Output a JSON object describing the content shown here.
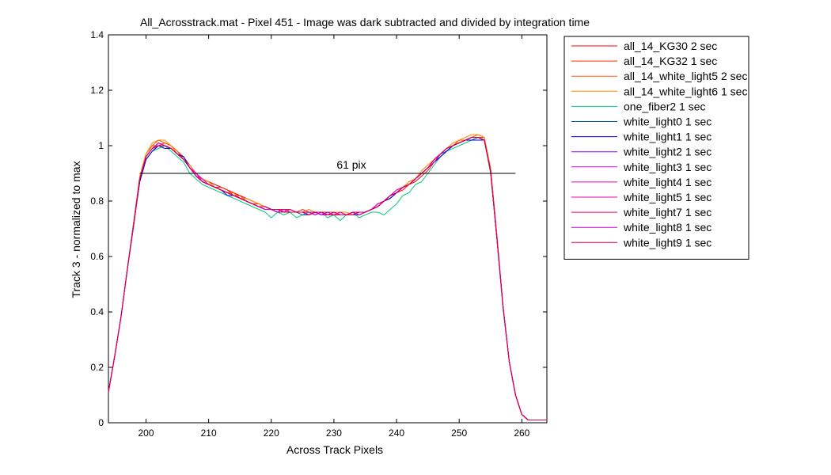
{
  "chart_data": {
    "type": "line",
    "title": "All_Acrosstrack.mat - Pixel 451 - Image was dark subtracted and divided by integration time",
    "xlabel": "Across Track Pixels",
    "ylabel": "Track 3 - normalized to max",
    "xlim": [
      194,
      264
    ],
    "ylim": [
      0,
      1.4
    ],
    "xticks": [
      200,
      210,
      220,
      230,
      240,
      250,
      260
    ],
    "yticks": [
      0,
      0.2,
      0.4,
      0.6,
      0.8,
      1,
      1.2,
      1.4
    ],
    "xtick_labels": [
      "200",
      "210",
      "220",
      "230",
      "240",
      "250",
      "260"
    ],
    "ytick_labels": [
      "0",
      "0.2",
      "0.4",
      "0.6",
      "0.8",
      "1",
      "1.2",
      "1.4"
    ],
    "grid": false,
    "legend_position": "outside-right",
    "x": [
      194,
      195,
      196,
      197,
      198,
      199,
      200,
      201,
      202,
      203,
      204,
      205,
      206,
      207,
      208,
      209,
      210,
      211,
      212,
      213,
      214,
      215,
      216,
      217,
      218,
      219,
      220,
      221,
      222,
      223,
      224,
      225,
      226,
      227,
      228,
      229,
      230,
      231,
      232,
      233,
      234,
      235,
      236,
      237,
      238,
      239,
      240,
      241,
      242,
      243,
      244,
      245,
      246,
      247,
      248,
      249,
      250,
      251,
      252,
      253,
      254,
      255,
      256,
      257,
      258,
      259,
      260,
      261,
      262,
      263,
      264
    ],
    "series": [
      {
        "name": "all_14_KG30 2 sec",
        "color": "#ff0000",
        "values": [
          0.11,
          0.24,
          0.38,
          0.55,
          0.72,
          0.88,
          0.96,
          0.99,
          1.01,
          1.0,
          0.99,
          0.97,
          0.95,
          0.92,
          0.9,
          0.88,
          0.87,
          0.86,
          0.85,
          0.84,
          0.83,
          0.82,
          0.81,
          0.8,
          0.79,
          0.78,
          0.77,
          0.77,
          0.77,
          0.77,
          0.76,
          0.76,
          0.76,
          0.76,
          0.76,
          0.76,
          0.76,
          0.75,
          0.75,
          0.75,
          0.75,
          0.76,
          0.77,
          0.78,
          0.8,
          0.81,
          0.83,
          0.84,
          0.86,
          0.87,
          0.89,
          0.91,
          0.94,
          0.96,
          0.98,
          1.0,
          1.01,
          1.02,
          1.03,
          1.03,
          1.02,
          0.92,
          0.68,
          0.42,
          0.22,
          0.1,
          0.03,
          0.01,
          0.01,
          0.01,
          0.01
        ]
      },
      {
        "name": "all_14_KG32 1 sec",
        "color": "#ff2a00",
        "values": [
          0.11,
          0.24,
          0.38,
          0.55,
          0.72,
          0.88,
          0.97,
          1.0,
          1.0,
          1.01,
          1.0,
          0.98,
          0.95,
          0.92,
          0.89,
          0.88,
          0.87,
          0.85,
          0.85,
          0.84,
          0.82,
          0.82,
          0.8,
          0.79,
          0.79,
          0.78,
          0.77,
          0.77,
          0.76,
          0.76,
          0.76,
          0.77,
          0.76,
          0.75,
          0.76,
          0.76,
          0.76,
          0.76,
          0.75,
          0.76,
          0.75,
          0.76,
          0.77,
          0.78,
          0.8,
          0.82,
          0.83,
          0.85,
          0.86,
          0.88,
          0.9,
          0.92,
          0.94,
          0.97,
          0.99,
          1.0,
          1.02,
          1.02,
          1.03,
          1.03,
          1.03,
          0.92,
          0.68,
          0.42,
          0.22,
          0.1,
          0.03,
          0.01,
          0.01,
          0.01,
          0.01
        ]
      },
      {
        "name": "all_14_white_light5 2 sec",
        "color": "#ff5500",
        "values": [
          0.11,
          0.24,
          0.38,
          0.55,
          0.72,
          0.89,
          0.97,
          1.0,
          1.02,
          1.01,
          1.0,
          0.98,
          0.96,
          0.93,
          0.9,
          0.88,
          0.86,
          0.85,
          0.84,
          0.83,
          0.83,
          0.81,
          0.8,
          0.79,
          0.78,
          0.78,
          0.77,
          0.76,
          0.76,
          0.76,
          0.76,
          0.76,
          0.75,
          0.76,
          0.75,
          0.75,
          0.76,
          0.75,
          0.75,
          0.76,
          0.76,
          0.76,
          0.77,
          0.79,
          0.8,
          0.82,
          0.84,
          0.85,
          0.87,
          0.88,
          0.9,
          0.92,
          0.95,
          0.97,
          0.99,
          1.0,
          1.02,
          1.02,
          1.03,
          1.04,
          1.03,
          0.92,
          0.68,
          0.42,
          0.22,
          0.1,
          0.03,
          0.01,
          0.01,
          0.01,
          0.01
        ]
      },
      {
        "name": "all_14_white_light6 1 sec",
        "color": "#ff8c00",
        "values": [
          0.11,
          0.24,
          0.38,
          0.55,
          0.72,
          0.89,
          0.97,
          1.01,
          1.02,
          1.02,
          1.0,
          0.97,
          0.95,
          0.92,
          0.9,
          0.88,
          0.87,
          0.85,
          0.84,
          0.83,
          0.82,
          0.81,
          0.81,
          0.8,
          0.79,
          0.78,
          0.77,
          0.77,
          0.76,
          0.76,
          0.76,
          0.76,
          0.77,
          0.76,
          0.76,
          0.75,
          0.76,
          0.76,
          0.76,
          0.75,
          0.76,
          0.76,
          0.77,
          0.78,
          0.8,
          0.82,
          0.83,
          0.85,
          0.87,
          0.88,
          0.91,
          0.93,
          0.95,
          0.97,
          0.99,
          1.01,
          1.02,
          1.03,
          1.04,
          1.04,
          1.03,
          0.92,
          0.68,
          0.42,
          0.22,
          0.1,
          0.03,
          0.01,
          0.01,
          0.01,
          0.01
        ]
      },
      {
        "name": "one_fiber2 1 sec",
        "color": "#00cc77",
        "values": [
          0.11,
          0.24,
          0.38,
          0.55,
          0.72,
          0.87,
          0.95,
          0.98,
          0.99,
          1.0,
          0.98,
          0.96,
          0.94,
          0.9,
          0.88,
          0.86,
          0.85,
          0.84,
          0.83,
          0.82,
          0.81,
          0.8,
          0.79,
          0.78,
          0.77,
          0.76,
          0.74,
          0.76,
          0.75,
          0.76,
          0.74,
          0.75,
          0.76,
          0.75,
          0.76,
          0.74,
          0.75,
          0.73,
          0.75,
          0.76,
          0.74,
          0.75,
          0.76,
          0.76,
          0.75,
          0.77,
          0.79,
          0.82,
          0.83,
          0.86,
          0.87,
          0.9,
          0.93,
          0.96,
          0.98,
          0.99,
          1.0,
          1.01,
          1.02,
          1.02,
          1.02,
          0.9,
          0.67,
          0.41,
          0.22,
          0.1,
          0.03,
          0.01,
          0.01,
          0.01,
          0.01
        ]
      },
      {
        "name": "white_light0 1 sec",
        "color": "#0055cc",
        "values": [
          0.11,
          0.24,
          0.38,
          0.55,
          0.71,
          0.87,
          0.95,
          0.98,
          1.0,
          1.0,
          0.99,
          0.97,
          0.96,
          0.92,
          0.89,
          0.87,
          0.86,
          0.85,
          0.84,
          0.83,
          0.82,
          0.81,
          0.8,
          0.79,
          0.78,
          0.77,
          0.77,
          0.76,
          0.76,
          0.76,
          0.76,
          0.75,
          0.75,
          0.76,
          0.76,
          0.75,
          0.75,
          0.75,
          0.75,
          0.75,
          0.75,
          0.76,
          0.77,
          0.78,
          0.8,
          0.81,
          0.83,
          0.85,
          0.86,
          0.88,
          0.9,
          0.92,
          0.94,
          0.97,
          0.98,
          1.0,
          1.01,
          1.02,
          1.02,
          1.03,
          1.02,
          0.91,
          0.67,
          0.42,
          0.22,
          0.1,
          0.03,
          0.01,
          0.01,
          0.01,
          0.01
        ]
      },
      {
        "name": "white_light1 1 sec",
        "color": "#0000dd",
        "values": [
          0.11,
          0.24,
          0.38,
          0.55,
          0.71,
          0.87,
          0.95,
          0.98,
          1.0,
          0.99,
          0.99,
          0.97,
          0.96,
          0.92,
          0.89,
          0.87,
          0.86,
          0.85,
          0.84,
          0.82,
          0.82,
          0.81,
          0.8,
          0.79,
          0.78,
          0.77,
          0.77,
          0.76,
          0.76,
          0.76,
          0.76,
          0.76,
          0.75,
          0.76,
          0.75,
          0.75,
          0.75,
          0.75,
          0.75,
          0.75,
          0.76,
          0.76,
          0.77,
          0.78,
          0.8,
          0.81,
          0.83,
          0.85,
          0.86,
          0.88,
          0.9,
          0.92,
          0.94,
          0.96,
          0.98,
          1.0,
          1.01,
          1.02,
          1.02,
          1.02,
          1.02,
          0.91,
          0.67,
          0.42,
          0.22,
          0.1,
          0.03,
          0.01,
          0.01,
          0.01,
          0.01
        ]
      },
      {
        "name": "white_light2 1 sec",
        "color": "#8800ff",
        "values": [
          0.11,
          0.24,
          0.38,
          0.55,
          0.71,
          0.88,
          0.96,
          0.99,
          1.0,
          1.0,
          0.99,
          0.97,
          0.95,
          0.92,
          0.89,
          0.87,
          0.86,
          0.85,
          0.84,
          0.83,
          0.82,
          0.81,
          0.8,
          0.79,
          0.78,
          0.78,
          0.77,
          0.76,
          0.76,
          0.76,
          0.76,
          0.76,
          0.75,
          0.76,
          0.75,
          0.76,
          0.75,
          0.75,
          0.75,
          0.75,
          0.76,
          0.76,
          0.77,
          0.79,
          0.8,
          0.82,
          0.83,
          0.85,
          0.86,
          0.88,
          0.9,
          0.92,
          0.94,
          0.97,
          0.99,
          1.0,
          1.01,
          1.02,
          1.03,
          1.03,
          1.02,
          0.91,
          0.67,
          0.42,
          0.22,
          0.1,
          0.03,
          0.01,
          0.01,
          0.01,
          0.01
        ]
      },
      {
        "name": "white_light3 1 sec",
        "color": "#cc00ee",
        "values": [
          0.11,
          0.24,
          0.38,
          0.55,
          0.71,
          0.88,
          0.96,
          0.99,
          1.0,
          1.0,
          0.99,
          0.97,
          0.95,
          0.92,
          0.9,
          0.87,
          0.86,
          0.85,
          0.84,
          0.83,
          0.82,
          0.81,
          0.8,
          0.79,
          0.78,
          0.77,
          0.77,
          0.77,
          0.76,
          0.76,
          0.76,
          0.76,
          0.76,
          0.75,
          0.76,
          0.75,
          0.75,
          0.75,
          0.75,
          0.76,
          0.76,
          0.76,
          0.77,
          0.78,
          0.8,
          0.82,
          0.83,
          0.85,
          0.86,
          0.88,
          0.9,
          0.92,
          0.94,
          0.97,
          0.99,
          1.0,
          1.01,
          1.02,
          1.03,
          1.03,
          1.02,
          0.91,
          0.67,
          0.42,
          0.22,
          0.1,
          0.03,
          0.01,
          0.01,
          0.01,
          0.01
        ]
      },
      {
        "name": "white_light4 1 sec",
        "color": "#dd00cc",
        "values": [
          0.11,
          0.24,
          0.38,
          0.55,
          0.71,
          0.88,
          0.96,
          0.99,
          1.01,
          1.0,
          0.99,
          0.97,
          0.95,
          0.92,
          0.9,
          0.88,
          0.86,
          0.85,
          0.84,
          0.83,
          0.82,
          0.81,
          0.8,
          0.79,
          0.78,
          0.78,
          0.77,
          0.76,
          0.77,
          0.76,
          0.76,
          0.76,
          0.75,
          0.76,
          0.76,
          0.75,
          0.76,
          0.75,
          0.75,
          0.76,
          0.75,
          0.76,
          0.77,
          0.79,
          0.8,
          0.82,
          0.84,
          0.85,
          0.86,
          0.88,
          0.9,
          0.92,
          0.95,
          0.97,
          0.99,
          1.0,
          1.01,
          1.02,
          1.03,
          1.03,
          1.02,
          0.91,
          0.67,
          0.42,
          0.22,
          0.1,
          0.03,
          0.01,
          0.01,
          0.01,
          0.01
        ]
      },
      {
        "name": "white_light5 1 sec",
        "color": "#ee00aa",
        "values": [
          0.11,
          0.24,
          0.38,
          0.55,
          0.71,
          0.88,
          0.96,
          0.99,
          1.0,
          1.0,
          0.99,
          0.97,
          0.95,
          0.92,
          0.89,
          0.87,
          0.86,
          0.85,
          0.84,
          0.83,
          0.82,
          0.81,
          0.8,
          0.79,
          0.78,
          0.77,
          0.77,
          0.77,
          0.76,
          0.76,
          0.76,
          0.76,
          0.76,
          0.76,
          0.75,
          0.75,
          0.75,
          0.76,
          0.75,
          0.75,
          0.76,
          0.76,
          0.77,
          0.78,
          0.8,
          0.82,
          0.83,
          0.85,
          0.86,
          0.88,
          0.9,
          0.92,
          0.94,
          0.97,
          0.99,
          1.0,
          1.01,
          1.02,
          1.03,
          1.03,
          1.02,
          0.91,
          0.67,
          0.42,
          0.22,
          0.1,
          0.03,
          0.01,
          0.01,
          0.01,
          0.01
        ]
      },
      {
        "name": "white_light7 1 sec",
        "color": "#ee0077",
        "values": [
          0.11,
          0.24,
          0.38,
          0.55,
          0.71,
          0.88,
          0.96,
          0.99,
          1.0,
          1.0,
          0.99,
          0.97,
          0.95,
          0.92,
          0.89,
          0.87,
          0.86,
          0.85,
          0.84,
          0.83,
          0.82,
          0.81,
          0.8,
          0.79,
          0.78,
          0.78,
          0.77,
          0.76,
          0.76,
          0.77,
          0.76,
          0.76,
          0.75,
          0.76,
          0.76,
          0.75,
          0.76,
          0.75,
          0.75,
          0.75,
          0.76,
          0.76,
          0.77,
          0.78,
          0.8,
          0.82,
          0.83,
          0.85,
          0.86,
          0.88,
          0.9,
          0.92,
          0.95,
          0.97,
          0.99,
          1.0,
          1.01,
          1.02,
          1.03,
          1.03,
          1.02,
          0.91,
          0.67,
          0.42,
          0.22,
          0.1,
          0.03,
          0.01,
          0.01,
          0.01,
          0.01
        ]
      },
      {
        "name": "white_light8 1 sec",
        "color": "#cc00dd",
        "values": [
          0.11,
          0.24,
          0.38,
          0.55,
          0.71,
          0.88,
          0.96,
          0.99,
          1.0,
          1.0,
          0.99,
          0.97,
          0.95,
          0.92,
          0.89,
          0.87,
          0.86,
          0.85,
          0.84,
          0.83,
          0.82,
          0.81,
          0.8,
          0.79,
          0.78,
          0.77,
          0.77,
          0.76,
          0.76,
          0.76,
          0.76,
          0.76,
          0.76,
          0.76,
          0.75,
          0.75,
          0.75,
          0.75,
          0.75,
          0.76,
          0.76,
          0.76,
          0.77,
          0.78,
          0.8,
          0.82,
          0.83,
          0.85,
          0.86,
          0.88,
          0.9,
          0.92,
          0.94,
          0.97,
          0.99,
          1.0,
          1.01,
          1.02,
          1.03,
          1.03,
          1.02,
          0.91,
          0.67,
          0.42,
          0.22,
          0.1,
          0.03,
          0.01,
          0.01,
          0.01,
          0.01
        ]
      },
      {
        "name": "white_light9 1 sec",
        "color": "#dd0044",
        "values": [
          0.11,
          0.24,
          0.38,
          0.55,
          0.71,
          0.88,
          0.96,
          0.99,
          1.0,
          1.0,
          0.99,
          0.97,
          0.95,
          0.92,
          0.89,
          0.87,
          0.86,
          0.85,
          0.84,
          0.83,
          0.82,
          0.81,
          0.8,
          0.79,
          0.78,
          0.78,
          0.77,
          0.77,
          0.76,
          0.76,
          0.76,
          0.76,
          0.75,
          0.76,
          0.76,
          0.75,
          0.75,
          0.75,
          0.75,
          0.76,
          0.76,
          0.76,
          0.77,
          0.78,
          0.8,
          0.82,
          0.83,
          0.85,
          0.86,
          0.88,
          0.9,
          0.92,
          0.95,
          0.97,
          0.99,
          1.0,
          1.01,
          1.02,
          1.03,
          1.03,
          1.02,
          0.91,
          0.67,
          0.42,
          0.22,
          0.1,
          0.03,
          0.01,
          0.01,
          0.01,
          0.01
        ]
      }
    ],
    "annotations": [
      {
        "type": "hline",
        "label": "61 pix",
        "y": 0.9,
        "x_start": 199,
        "x_end": 259,
        "color": "#000000"
      }
    ]
  }
}
